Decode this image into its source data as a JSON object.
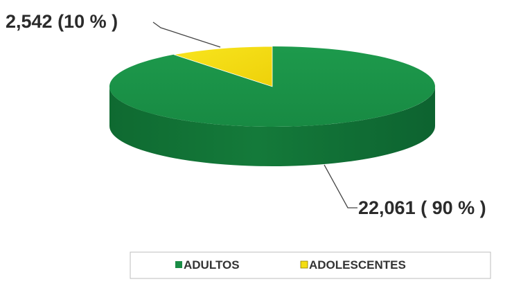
{
  "chart_data": {
    "type": "pie",
    "categories": [
      "ADULTOS",
      "ADOLESCENTES"
    ],
    "values": [
      22061,
      2542
    ],
    "percentages": [
      90,
      10
    ],
    "data_labels": [
      "22,061 ( 90 % )",
      "2,542 (10 % )"
    ],
    "colors": [
      "#1a8c45",
      "#f4dd12"
    ],
    "legend": {
      "position": "bottom",
      "entries": [
        "ADULTOS",
        "ADOLESCENTES"
      ]
    },
    "style": "3d-pie"
  }
}
